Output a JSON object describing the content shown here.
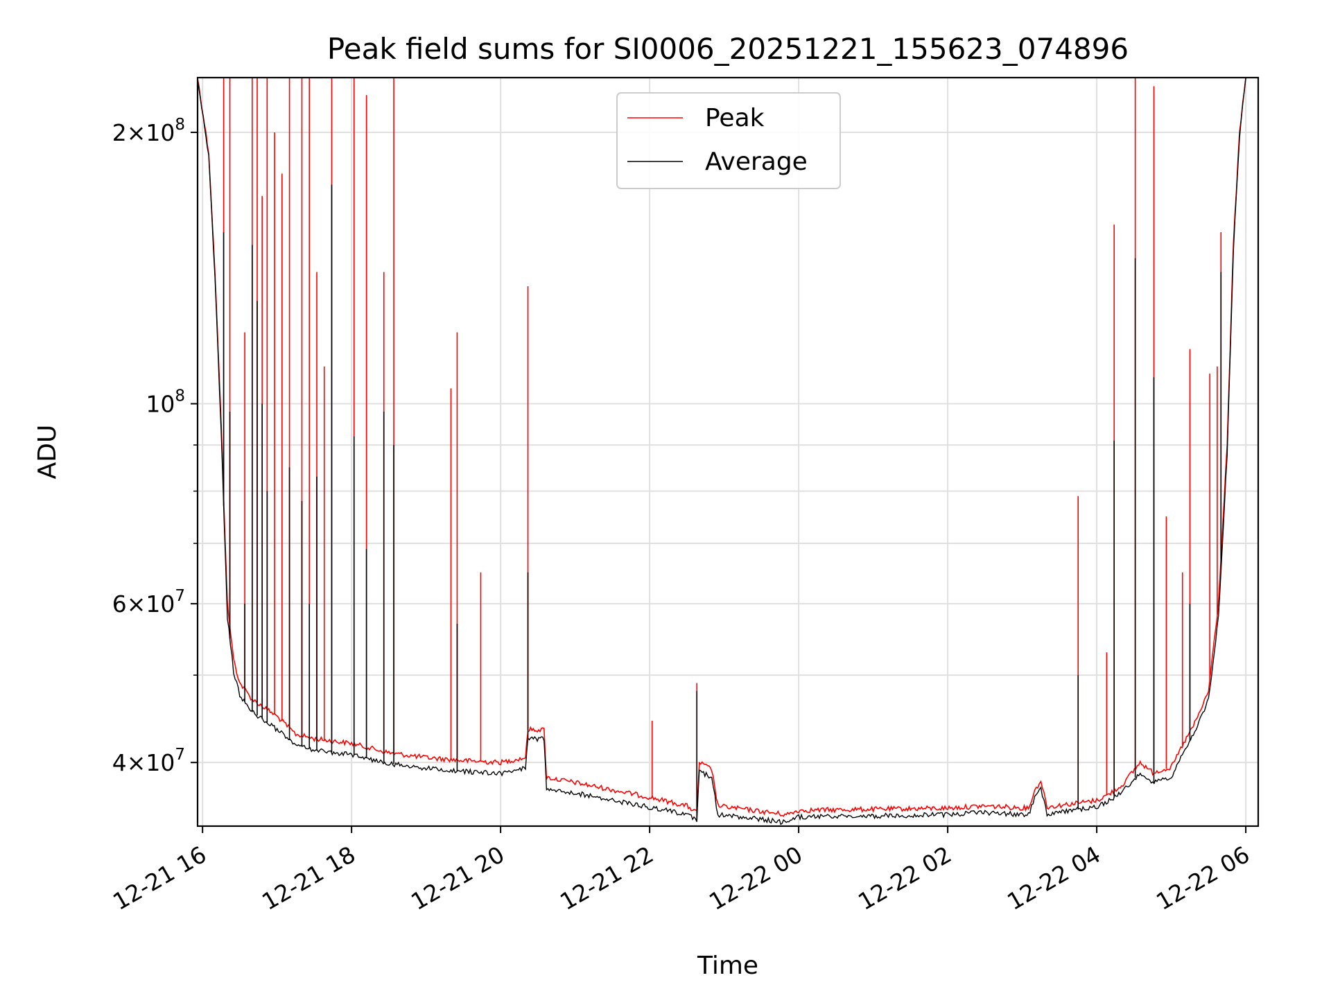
{
  "chart_data": {
    "type": "line",
    "title": "Peak field sums for SI0006_20251221_155623_074896",
    "xlabel": "Time",
    "ylabel": "ADU",
    "yscale": "log",
    "ylim": [
      34000000,
      230000000
    ],
    "xlim": [
      "2025-12-21 15:56",
      "2025-12-22 06:10"
    ],
    "x_ticks": [
      {
        "t": "2025-12-21 16:00",
        "label": "12-21 16"
      },
      {
        "t": "2025-12-21 18:00",
        "label": "12-21 18"
      },
      {
        "t": "2025-12-21 20:00",
        "label": "12-21 20"
      },
      {
        "t": "2025-12-21 22:00",
        "label": "12-21 22"
      },
      {
        "t": "2025-12-22 00:00",
        "label": "12-22 00"
      },
      {
        "t": "2025-12-22 02:00",
        "label": "12-22 02"
      },
      {
        "t": "2025-12-22 04:00",
        "label": "12-22 04"
      },
      {
        "t": "2025-12-22 06:00",
        "label": "12-22 06"
      }
    ],
    "y_ticks_major": [
      {
        "v": 40000000,
        "mant": "4",
        "exp": "7"
      },
      {
        "v": 60000000,
        "mant": "6",
        "exp": "7"
      },
      {
        "v": 100000000,
        "mant": "",
        "exp": "8"
      },
      {
        "v": 200000000,
        "mant": "2",
        "exp": "8"
      }
    ],
    "y_ticks_minor": [
      50000000,
      70000000,
      80000000,
      90000000
    ],
    "grid": true,
    "legend_position": "upper-center",
    "series": [
      {
        "name": "Peak",
        "color": "#ff0000",
        "points": [
          [
            "2025-12-21 15:56",
            230000000
          ],
          [
            "2025-12-21 16:05",
            190000000
          ],
          [
            "2025-12-21 16:10",
            140000000
          ],
          [
            "2025-12-21 16:15",
            95000000
          ],
          [
            "2025-12-21 16:20",
            60000000
          ],
          [
            "2025-12-21 16:25",
            52000000
          ],
          [
            "2025-12-21 16:30",
            49000000
          ],
          [
            "2025-12-21 16:40",
            47000000
          ],
          [
            "2025-12-21 16:50",
            46000000
          ],
          [
            "2025-12-21 17:00",
            45000000
          ],
          [
            "2025-12-21 17:15",
            43000000
          ],
          [
            "2025-12-21 17:30",
            42500000
          ],
          [
            "2025-12-21 18:00",
            42000000
          ],
          [
            "2025-12-21 18:30",
            41000000
          ],
          [
            "2025-12-21 19:00",
            40500000
          ],
          [
            "2025-12-21 19:30",
            40200000
          ],
          [
            "2025-12-21 20:00",
            40000000
          ],
          [
            "2025-12-21 20:20",
            40500000
          ],
          [
            "2025-12-21 20:22",
            43500000
          ],
          [
            "2025-12-21 20:35",
            43500000
          ],
          [
            "2025-12-21 20:37",
            38500000
          ],
          [
            "2025-12-21 21:00",
            38000000
          ],
          [
            "2025-12-21 21:30",
            37300000
          ],
          [
            "2025-12-21 22:00",
            36600000
          ],
          [
            "2025-12-21 22:30",
            35800000
          ],
          [
            "2025-12-21 22:38",
            35200000
          ],
          [
            "2025-12-21 22:40",
            40000000
          ],
          [
            "2025-12-21 22:50",
            39300000
          ],
          [
            "2025-12-21 22:55",
            35800000
          ],
          [
            "2025-12-21 23:30",
            35300000
          ],
          [
            "2025-12-21 23:50",
            35000000
          ],
          [
            "2025-12-22 00:00",
            35400000
          ],
          [
            "2025-12-22 01:00",
            35500000
          ],
          [
            "2025-12-22 02:00",
            35600000
          ],
          [
            "2025-12-22 02:30",
            35800000
          ],
          [
            "2025-12-22 03:05",
            35600000
          ],
          [
            "2025-12-22 03:10",
            37200000
          ],
          [
            "2025-12-22 03:15",
            38200000
          ],
          [
            "2025-12-22 03:20",
            35700000
          ],
          [
            "2025-12-22 04:00",
            36300000
          ],
          [
            "2025-12-22 04:10",
            36900000
          ],
          [
            "2025-12-22 04:20",
            37700000
          ],
          [
            "2025-12-22 04:35",
            40000000
          ],
          [
            "2025-12-22 04:45",
            39000000
          ],
          [
            "2025-12-22 05:00",
            39500000
          ],
          [
            "2025-12-22 05:10",
            42000000
          ],
          [
            "2025-12-22 05:20",
            44500000
          ],
          [
            "2025-12-22 05:30",
            48000000
          ],
          [
            "2025-12-22 05:38",
            60000000
          ],
          [
            "2025-12-22 05:45",
            90000000
          ],
          [
            "2025-12-22 05:50",
            150000000
          ],
          [
            "2025-12-22 05:55",
            200000000
          ],
          [
            "2025-12-22 06:00",
            230000000
          ]
        ],
        "spikes": [
          [
            "2025-12-21 16:17",
            230000000
          ],
          [
            "2025-12-21 16:22",
            230000000
          ],
          [
            "2025-12-21 16:34",
            120000000
          ],
          [
            "2025-12-21 16:40",
            230000000
          ],
          [
            "2025-12-21 16:44",
            230000000
          ],
          [
            "2025-12-21 16:48",
            170000000
          ],
          [
            "2025-12-21 16:52",
            230000000
          ],
          [
            "2025-12-21 16:58",
            200000000
          ],
          [
            "2025-12-21 17:04",
            180000000
          ],
          [
            "2025-12-21 17:10",
            230000000
          ],
          [
            "2025-12-21 17:20",
            230000000
          ],
          [
            "2025-12-21 17:26",
            230000000
          ],
          [
            "2025-12-21 17:32",
            140000000
          ],
          [
            "2025-12-21 17:38",
            110000000
          ],
          [
            "2025-12-21 17:44",
            230000000
          ],
          [
            "2025-12-21 18:02",
            230000000
          ],
          [
            "2025-12-21 18:12",
            220000000
          ],
          [
            "2025-12-21 18:26",
            140000000
          ],
          [
            "2025-12-21 18:34",
            230000000
          ],
          [
            "2025-12-21 19:20",
            104000000
          ],
          [
            "2025-12-21 19:25",
            120000000
          ],
          [
            "2025-12-21 19:44",
            65000000
          ],
          [
            "2025-12-21 20:22",
            135000000
          ],
          [
            "2025-12-21 22:02",
            44500000
          ],
          [
            "2025-12-21 22:38",
            49000000
          ],
          [
            "2025-12-22 03:45",
            79000000
          ],
          [
            "2025-12-22 04:08",
            53000000
          ],
          [
            "2025-12-22 04:14",
            158000000
          ],
          [
            "2025-12-22 04:31",
            230000000
          ],
          [
            "2025-12-22 04:46",
            225000000
          ],
          [
            "2025-12-22 04:56",
            75000000
          ],
          [
            "2025-12-22 05:09",
            65000000
          ],
          [
            "2025-12-22 05:15",
            115000000
          ],
          [
            "2025-12-22 05:31",
            108000000
          ],
          [
            "2025-12-22 05:37",
            110000000
          ],
          [
            "2025-12-22 05:40",
            155000000
          ]
        ]
      },
      {
        "name": "Average",
        "color": "#000000",
        "points": [
          [
            "2025-12-21 15:56",
            230000000
          ],
          [
            "2025-12-21 16:05",
            188000000
          ],
          [
            "2025-12-21 16:10",
            138000000
          ],
          [
            "2025-12-21 16:15",
            93000000
          ],
          [
            "2025-12-21 16:20",
            58000000
          ],
          [
            "2025-12-21 16:25",
            50500000
          ],
          [
            "2025-12-21 16:30",
            47500000
          ],
          [
            "2025-12-21 16:40",
            45500000
          ],
          [
            "2025-12-21 16:50",
            44500000
          ],
          [
            "2025-12-21 17:00",
            43500000
          ],
          [
            "2025-12-21 17:15",
            41800000
          ],
          [
            "2025-12-21 17:30",
            41300000
          ],
          [
            "2025-12-21 18:00",
            40800000
          ],
          [
            "2025-12-21 18:30",
            39900000
          ],
          [
            "2025-12-21 19:00",
            39400000
          ],
          [
            "2025-12-21 19:30",
            39100000
          ],
          [
            "2025-12-21 20:00",
            38900000
          ],
          [
            "2025-12-21 20:20",
            39400000
          ],
          [
            "2025-12-21 20:22",
            42500000
          ],
          [
            "2025-12-21 20:35",
            42500000
          ],
          [
            "2025-12-21 20:37",
            37500000
          ],
          [
            "2025-12-21 21:00",
            37000000
          ],
          [
            "2025-12-21 21:30",
            36300000
          ],
          [
            "2025-12-21 22:00",
            35700000
          ],
          [
            "2025-12-21 22:30",
            35000000
          ],
          [
            "2025-12-21 22:38",
            34500000
          ],
          [
            "2025-12-21 22:40",
            39200000
          ],
          [
            "2025-12-21 22:50",
            38400000
          ],
          [
            "2025-12-21 22:55",
            35000000
          ],
          [
            "2025-12-21 23:30",
            34600000
          ],
          [
            "2025-12-21 23:50",
            34300000
          ],
          [
            "2025-12-22 00:00",
            34800000
          ],
          [
            "2025-12-22 01:00",
            34900000
          ],
          [
            "2025-12-22 02:00",
            35000000
          ],
          [
            "2025-12-22 02:30",
            35200000
          ],
          [
            "2025-12-22 03:05",
            35000000
          ],
          [
            "2025-12-22 03:10",
            36500000
          ],
          [
            "2025-12-22 03:15",
            37500000
          ],
          [
            "2025-12-22 03:20",
            35100000
          ],
          [
            "2025-12-22 04:00",
            35700000
          ],
          [
            "2025-12-22 04:10",
            36300000
          ],
          [
            "2025-12-22 04:20",
            37000000
          ],
          [
            "2025-12-22 04:35",
            39000000
          ],
          [
            "2025-12-22 04:45",
            38000000
          ],
          [
            "2025-12-22 05:00",
            38500000
          ],
          [
            "2025-12-22 05:10",
            41000000
          ],
          [
            "2025-12-22 05:20",
            43500000
          ],
          [
            "2025-12-22 05:30",
            47000000
          ],
          [
            "2025-12-22 05:38",
            58000000
          ],
          [
            "2025-12-22 05:45",
            88000000
          ],
          [
            "2025-12-22 05:50",
            148000000
          ],
          [
            "2025-12-22 05:55",
            198000000
          ],
          [
            "2025-12-22 06:00",
            230000000
          ]
        ],
        "spikes": [
          [
            "2025-12-21 16:17",
            155000000
          ],
          [
            "2025-12-21 16:22",
            98000000
          ],
          [
            "2025-12-21 16:34",
            60000000
          ],
          [
            "2025-12-21 16:40",
            150000000
          ],
          [
            "2025-12-21 16:44",
            130000000
          ],
          [
            "2025-12-21 16:48",
            100000000
          ],
          [
            "2025-12-21 16:52",
            80000000
          ],
          [
            "2025-12-21 17:10",
            85000000
          ],
          [
            "2025-12-21 17:20",
            78000000
          ],
          [
            "2025-12-21 17:26",
            60000000
          ],
          [
            "2025-12-21 17:32",
            83000000
          ],
          [
            "2025-12-21 17:44",
            175000000
          ],
          [
            "2025-12-21 18:02",
            92000000
          ],
          [
            "2025-12-21 18:12",
            69000000
          ],
          [
            "2025-12-21 18:26",
            98000000
          ],
          [
            "2025-12-21 18:34",
            90000000
          ],
          [
            "2025-12-21 19:25",
            57000000
          ],
          [
            "2025-12-21 20:22",
            65000000
          ],
          [
            "2025-12-21 22:38",
            48000000
          ],
          [
            "2025-12-22 03:45",
            50000000
          ],
          [
            "2025-12-22 04:14",
            91000000
          ],
          [
            "2025-12-22 04:31",
            145000000
          ],
          [
            "2025-12-22 04:46",
            107000000
          ],
          [
            "2025-12-22 05:15",
            60000000
          ],
          [
            "2025-12-22 05:40",
            140000000
          ]
        ]
      }
    ]
  }
}
